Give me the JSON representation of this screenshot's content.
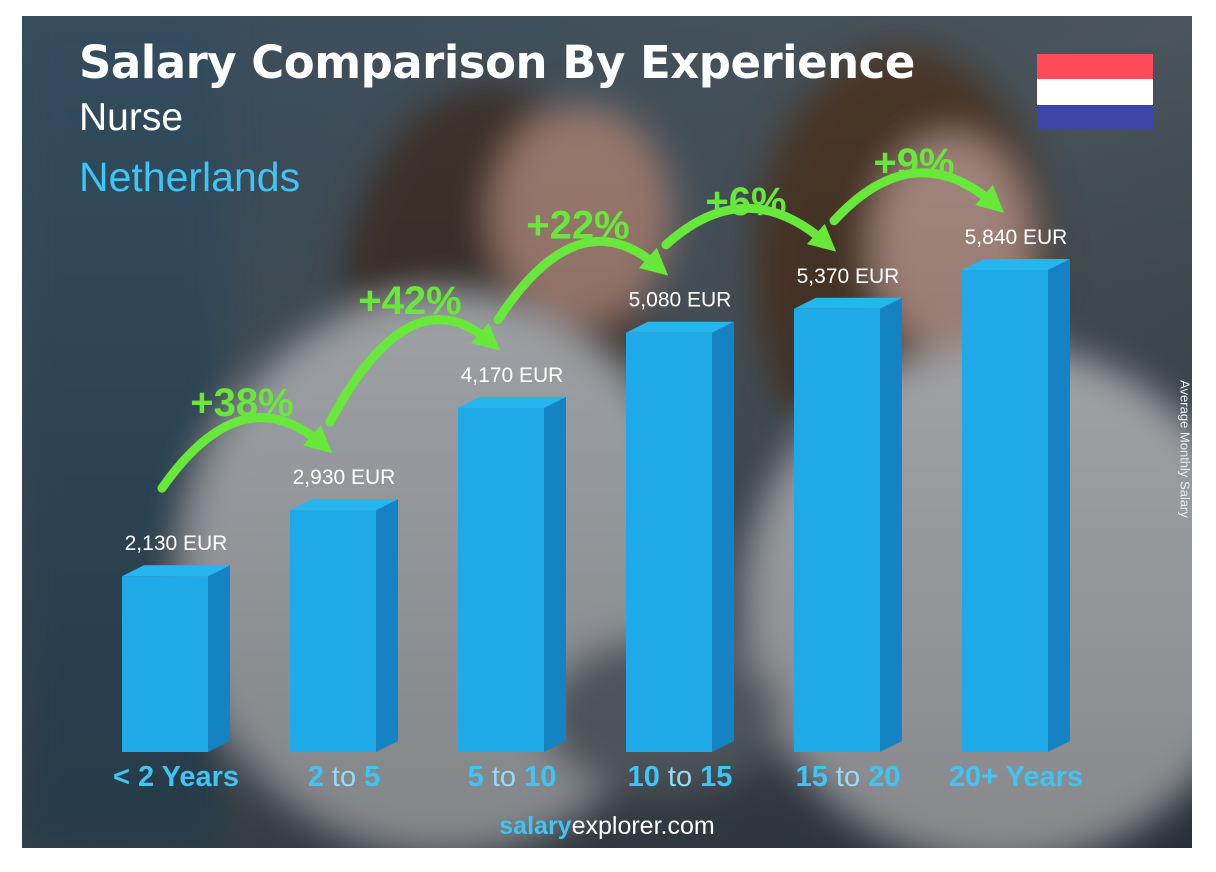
{
  "header": {
    "title": "Salary Comparison By Experience",
    "job": "Nurse",
    "country": "Netherlands"
  },
  "footer": {
    "brand_bold": "salary",
    "brand_rest": "explorer.com"
  },
  "flag": {
    "name": "netherlands-flag",
    "colors": [
      "#ff4a57",
      "#ffffff",
      "#3d46a8"
    ]
  },
  "colors": {
    "bar_front": "#1fa9e6",
    "bar_side": "#1582c3",
    "bar_top": "#25b6ef",
    "category_bold": "#3ec5f5",
    "category_light": "#9ad9f3",
    "growth": "#67e83a",
    "value_label": "#ffffff"
  },
  "chart_data": {
    "type": "bar",
    "ylabel": "Average Monthly Salary",
    "xlabel": "",
    "unit": "EUR",
    "categories": [
      {
        "prefix": "< 2 Years",
        "mid": "",
        "suffix": ""
      },
      {
        "prefix": "2",
        "mid": " to ",
        "suffix": "5"
      },
      {
        "prefix": "5",
        "mid": " to ",
        "suffix": "10"
      },
      {
        "prefix": "10",
        "mid": " to ",
        "suffix": "15"
      },
      {
        "prefix": "15",
        "mid": " to ",
        "suffix": "20"
      },
      {
        "prefix": "20+ Years",
        "mid": "",
        "suffix": ""
      }
    ],
    "values": [
      2130,
      2930,
      4170,
      5080,
      5370,
      5840
    ],
    "value_labels": [
      "2,130 EUR",
      "2,930 EUR",
      "4,170 EUR",
      "5,080 EUR",
      "5,370 EUR",
      "5,840 EUR"
    ],
    "growth_labels": [
      "+38%",
      "+42%",
      "+22%",
      "+6%",
      "+9%"
    ],
    "ylim": [
      0,
      5840
    ]
  }
}
